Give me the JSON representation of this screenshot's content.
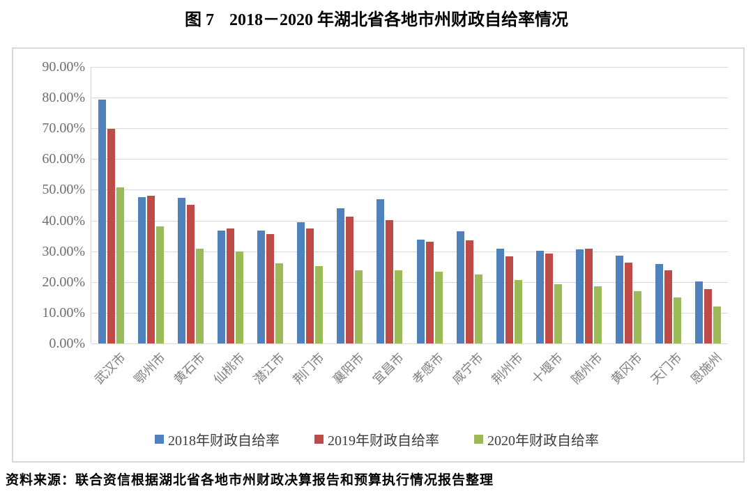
{
  "figure": {
    "label": "图 7",
    "title": "2018－2020 年湖北省各地市州财政自给率情况",
    "source": "资料来源：联合资信根据湖北省各地市州财政决算报告和预算执行情况报告整理"
  },
  "chart_data": {
    "type": "bar",
    "title": "图 7 2018－2020 年湖北省各地市州财政自给率情况",
    "categories": [
      "武汉市",
      "鄂州市",
      "黄石市",
      "仙桃市",
      "潜江市",
      "荆门市",
      "襄阳市",
      "宜昌市",
      "孝感市",
      "咸宁市",
      "荆州市",
      "十堰市",
      "随州市",
      "黄冈市",
      "天门市",
      "恩施州"
    ],
    "series": [
      {
        "name": "2018年财政自给率",
        "color": "#4F81BD",
        "values": [
          79.3,
          47.7,
          47.4,
          36.8,
          36.7,
          39.4,
          44.0,
          47.0,
          33.8,
          36.4,
          30.8,
          30.1,
          30.6,
          28.6,
          25.8,
          20.3
        ]
      },
      {
        "name": "2019年财政自给率",
        "color": "#BF4B48",
        "values": [
          69.9,
          48.0,
          45.2,
          37.4,
          35.5,
          37.4,
          41.2,
          40.2,
          33.0,
          33.6,
          28.3,
          29.2,
          30.9,
          26.3,
          23.8,
          17.6
        ]
      },
      {
        "name": "2020年财政自给率",
        "color": "#9BBB59",
        "values": [
          50.8,
          38.0,
          30.8,
          29.9,
          26.0,
          25.2,
          23.8,
          23.8,
          23.3,
          22.5,
          20.6,
          19.3,
          18.6,
          17.1,
          15.0,
          12.0
        ]
      }
    ],
    "xlabel": "",
    "ylabel": "",
    "ylim": [
      0,
      90
    ],
    "ytick_labels": [
      "0.00%",
      "10.00%",
      "20.00%",
      "30.00%",
      "40.00%",
      "50.00%",
      "60.00%",
      "70.00%",
      "80.00%",
      "90.00%"
    ],
    "grid": true,
    "legend_position": "bottom",
    "gridline_color": "#d9d9d9",
    "axis_text_color": "#6e6e6e"
  }
}
